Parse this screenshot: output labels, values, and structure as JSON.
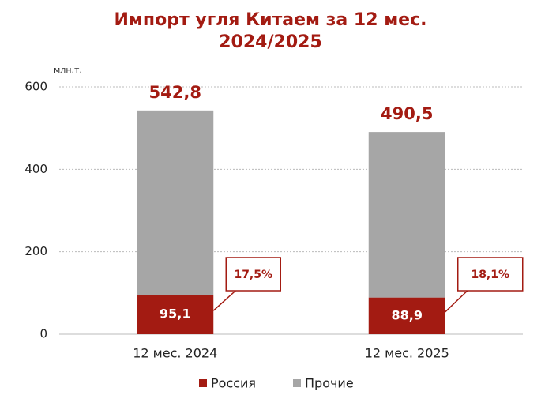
{
  "chart_data": {
    "type": "stacked_bar",
    "title": "Импорт угля Китаем за 12 мес. 2024/2025",
    "unit_label": "млн.т.",
    "categories": [
      "12 мес. 2024",
      "12 мес. 2025"
    ],
    "series": [
      {
        "name": "Россия",
        "color": "#a31b12",
        "values": [
          95.1,
          88.9
        ],
        "value_labels": [
          "95,1",
          "88,9"
        ]
      },
      {
        "name": "Прочие",
        "color": "#a6a6a6",
        "values": [
          447.7,
          401.6
        ]
      }
    ],
    "totals": [
      542.8,
      490.5
    ],
    "total_labels": [
      "542,8",
      "490,5"
    ],
    "shares": [
      17.5,
      18.1
    ],
    "share_labels": [
      "17,5%",
      "18,1%"
    ],
    "ylim": [
      0,
      600
    ],
    "yticks": [
      0,
      200,
      400,
      600
    ],
    "grid": true,
    "legend": "bottom"
  }
}
